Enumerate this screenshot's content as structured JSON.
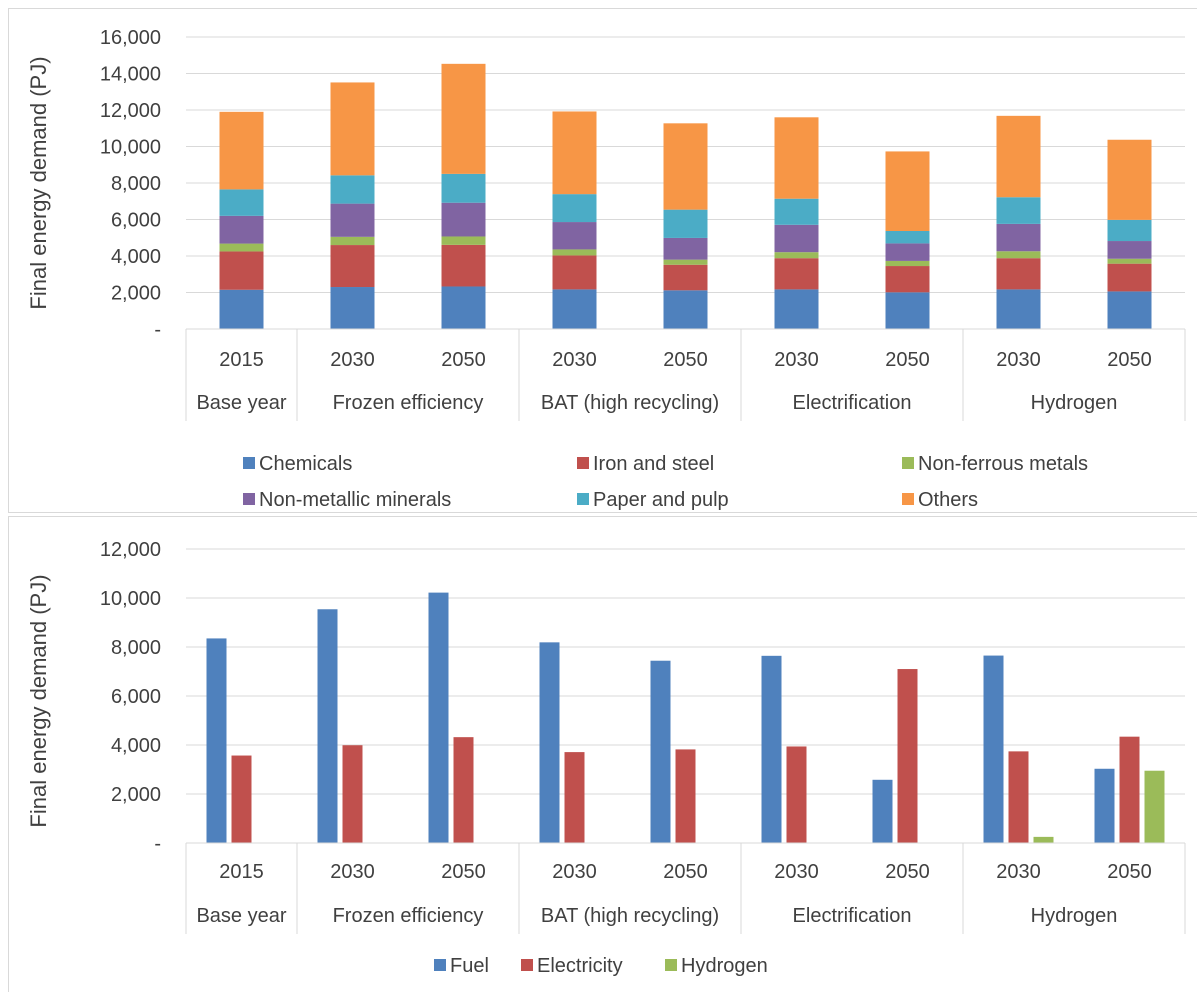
{
  "chart_data": [
    {
      "type": "bar",
      "stacked": true,
      "ylabel": "Final energy demand (PJ)",
      "ylim": [
        0,
        16000
      ],
      "yticks": [
        "-",
        "2,000",
        "4,000",
        "6,000",
        "8,000",
        "10,000",
        "12,000",
        "14,000",
        "16,000"
      ],
      "categories": [
        "2015",
        "2030",
        "2050",
        "2030",
        "2050",
        "2030",
        "2050",
        "2030",
        "2050"
      ],
      "groups": [
        {
          "label": "Base year",
          "size": 1
        },
        {
          "label": "Frozen efficiency",
          "size": 2
        },
        {
          "label": "BAT (high recycling)",
          "size": 2
        },
        {
          "label": "Electrification",
          "size": 2
        },
        {
          "label": "Hydrogen",
          "size": 2
        }
      ],
      "grid": true,
      "legend_position": "bottom",
      "series": [
        {
          "name": "Chemicals",
          "color": "#4f81bd",
          "values": [
            2150,
            2300,
            2330,
            2170,
            2120,
            2170,
            2010,
            2170,
            2060
          ]
        },
        {
          "name": "Iron and steel",
          "color": "#c0504d",
          "values": [
            2100,
            2300,
            2280,
            1860,
            1400,
            1710,
            1440,
            1710,
            1520
          ]
        },
        {
          "name": "Non-ferrous metals",
          "color": "#9bbb59",
          "values": [
            430,
            450,
            460,
            330,
            280,
            330,
            280,
            380,
            270
          ]
        },
        {
          "name": "Non-metallic minerals",
          "color": "#8064a2",
          "values": [
            1520,
            1820,
            1850,
            1500,
            1190,
            1500,
            960,
            1500,
            970
          ]
        },
        {
          "name": "Paper and pulp",
          "color": "#4bacc6",
          "values": [
            1450,
            1550,
            1580,
            1530,
            1550,
            1430,
            680,
            1460,
            1160
          ]
        },
        {
          "name": "Others",
          "color": "#f79646",
          "values": [
            4250,
            5090,
            6030,
            4530,
            4730,
            4460,
            4360,
            4460,
            4390
          ]
        }
      ]
    },
    {
      "type": "bar",
      "stacked": false,
      "ylabel": "Final energy demand (PJ)",
      "ylim": [
        0,
        12000
      ],
      "yticks": [
        "-",
        "2,000",
        "4,000",
        "6,000",
        "8,000",
        "10,000",
        "12,000"
      ],
      "categories": [
        "2015",
        "2030",
        "2050",
        "2030",
        "2050",
        "2030",
        "2050",
        "2030",
        "2050"
      ],
      "groups": [
        {
          "label": "Base year",
          "size": 1
        },
        {
          "label": "Frozen efficiency",
          "size": 2
        },
        {
          "label": "BAT (high recycling)",
          "size": 2
        },
        {
          "label": "Electrification",
          "size": 2
        },
        {
          "label": "Hydrogen",
          "size": 2
        }
      ],
      "grid": true,
      "legend_position": "bottom",
      "series": [
        {
          "name": "Fuel",
          "color": "#4f81bd",
          "values": [
            8350,
            9540,
            10220,
            8190,
            7440,
            7640,
            2580,
            7650,
            3030
          ]
        },
        {
          "name": "Electricity",
          "color": "#c0504d",
          "values": [
            3570,
            3990,
            4320,
            3710,
            3820,
            3940,
            7100,
            3740,
            4340
          ]
        },
        {
          "name": "Hydrogen",
          "color": "#9bbb59",
          "values": [
            0,
            0,
            0,
            0,
            0,
            0,
            0,
            250,
            2950
          ]
        }
      ]
    }
  ]
}
